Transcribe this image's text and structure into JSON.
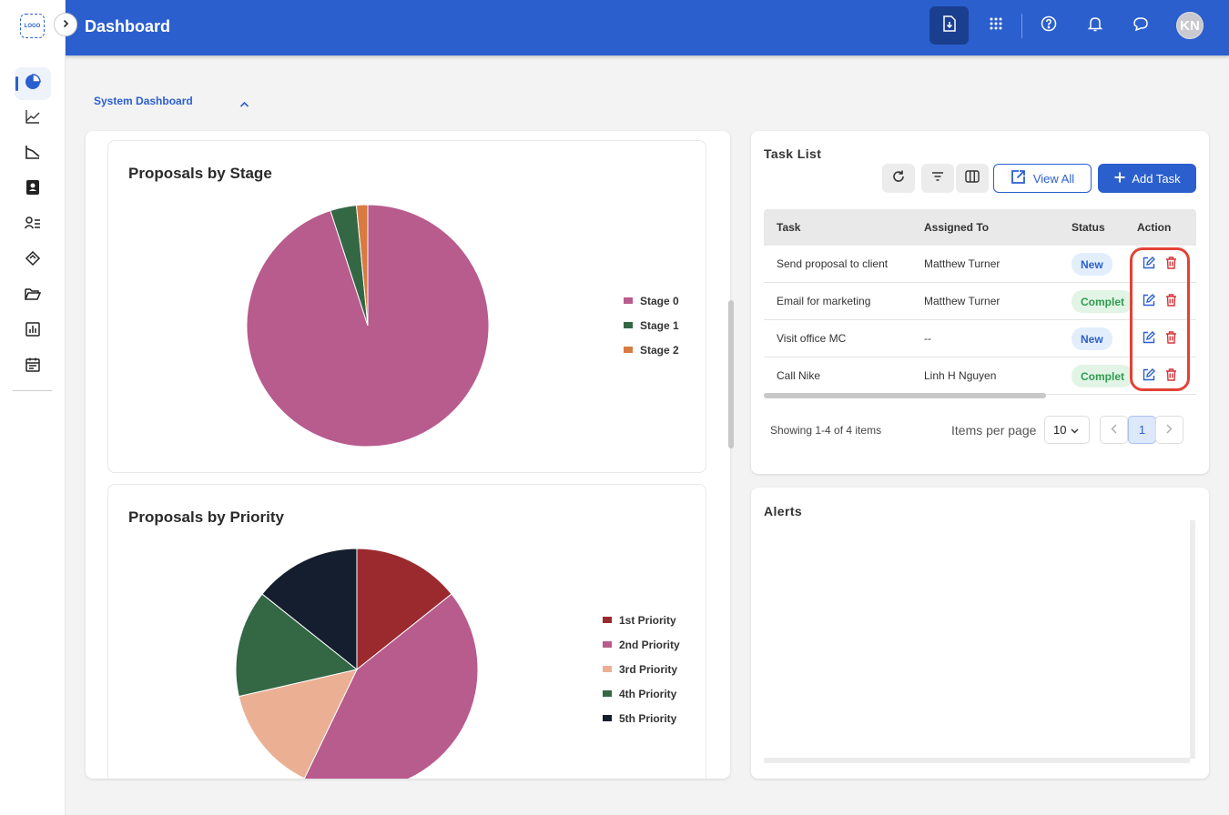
{
  "app": {
    "logo_text": "LOGO",
    "page_title": "Dashboard",
    "avatar_initials": "KN"
  },
  "section": {
    "title": "System Dashboard"
  },
  "proposals_by_stage": {
    "title": "Proposals by Stage"
  },
  "proposals_by_priority": {
    "title": "Proposals by Priority"
  },
  "chart_data": [
    {
      "type": "pie",
      "title": "Proposals by Stage",
      "legend_position": "right",
      "series": [
        {
          "name": "Stage 0",
          "value": 95,
          "color": "#b85b8d"
        },
        {
          "name": "Stage 1",
          "value": 3.5,
          "color": "#346845"
        },
        {
          "name": "Stage 2",
          "value": 1.5,
          "color": "#d97a40"
        }
      ]
    },
    {
      "type": "pie",
      "title": "Proposals by Priority",
      "legend_position": "right",
      "series": [
        {
          "name": "1st Priority",
          "value": 1,
          "color": "#9b2a2e"
        },
        {
          "name": "2nd Priority",
          "value": 3,
          "color": "#b85b8d"
        },
        {
          "name": "3rd Priority",
          "value": 1,
          "color": "#ebb094"
        },
        {
          "name": "4th Priority",
          "value": 1,
          "color": "#346845"
        },
        {
          "name": "5th Priority",
          "value": 1,
          "color": "#151e2e"
        }
      ]
    }
  ],
  "task_list": {
    "title": "Task List",
    "view_all_label": "View All",
    "add_task_label": "Add Task",
    "columns": [
      "Task",
      "Assigned To",
      "Status",
      "Action"
    ],
    "rows": [
      {
        "task": "Send proposal to client",
        "assigned": "Matthew Turner",
        "status": "New",
        "status_type": "new"
      },
      {
        "task": "Email for marketing",
        "assigned": "Matthew Turner",
        "status": "Complet",
        "status_type": "complete"
      },
      {
        "task": "Visit office MC",
        "assigned": "--",
        "status": "New",
        "status_type": "new"
      },
      {
        "task": "Call Nike",
        "assigned": "Linh H Nguyen",
        "status": "Complet",
        "status_type": "complete"
      }
    ],
    "showing_text": "Showing 1-4 of 4 items",
    "items_per_page_label": "Items per page",
    "items_per_page_value": "10",
    "current_page": "1"
  },
  "alerts": {
    "title": "Alerts"
  },
  "colors": {
    "brand": "#2b5fce",
    "highlight": "#e34234"
  }
}
